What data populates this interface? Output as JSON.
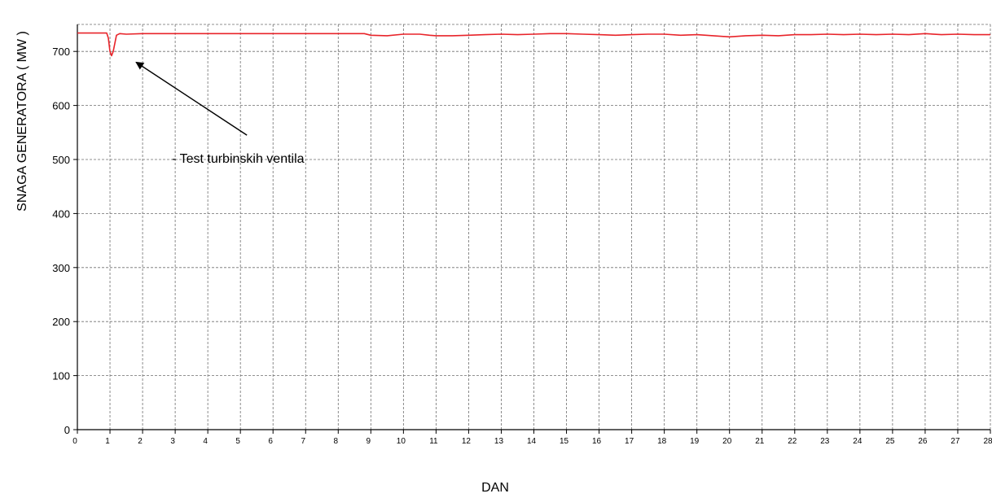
{
  "chart_data": {
    "type": "line",
    "title": "",
    "xlabel": "DAN",
    "ylabel": "SNAGA GENERATORA  ( MW )",
    "xlim": [
      0,
      28
    ],
    "ylim": [
      0,
      750
    ],
    "x_ticks": [
      0,
      1,
      2,
      3,
      4,
      5,
      6,
      7,
      8,
      9,
      10,
      11,
      12,
      13,
      14,
      15,
      16,
      17,
      18,
      19,
      20,
      21,
      22,
      23,
      24,
      25,
      26,
      27,
      28
    ],
    "y_ticks": [
      0,
      100,
      200,
      300,
      400,
      500,
      600,
      700
    ],
    "grid": true,
    "series": [
      {
        "color": "#e8242a",
        "x": [
          0,
          0.9,
          0.95,
          1.0,
          1.05,
          1.1,
          1.2,
          1.3,
          1.5,
          2,
          3,
          4,
          5,
          6,
          7,
          8,
          8.8,
          9.0,
          9.5,
          10.0,
          10.5,
          10.8,
          11,
          11.5,
          12,
          12.5,
          13,
          13.5,
          14,
          14.5,
          15,
          15.5,
          16,
          16.5,
          17,
          17.5,
          18,
          18.5,
          19,
          19.5,
          20,
          20.5,
          21,
          21.5,
          22,
          22.5,
          23,
          23.5,
          24,
          24.5,
          25,
          25.5,
          26,
          26.5,
          27,
          27.5,
          28
        ],
        "y": [
          734,
          734,
          725,
          700,
          692,
          700,
          730,
          733,
          732,
          733,
          733,
          733,
          733,
          733,
          733,
          733,
          733,
          730,
          729,
          732,
          732,
          730,
          729,
          729,
          730,
          731,
          732,
          731,
          732,
          733,
          733,
          732,
          731,
          730,
          731,
          732,
          732,
          730,
          731,
          729,
          727,
          729,
          730,
          729,
          731,
          731,
          732,
          731,
          732,
          731,
          732,
          731,
          733,
          731,
          732,
          731,
          731
        ]
      }
    ],
    "annotations": [
      {
        "text": "- Test turbinskih ventila",
        "x": 2.9,
        "y": 503,
        "arrow_from": [
          5.2,
          545
        ],
        "arrow_to": [
          1.8,
          680
        ]
      }
    ]
  }
}
